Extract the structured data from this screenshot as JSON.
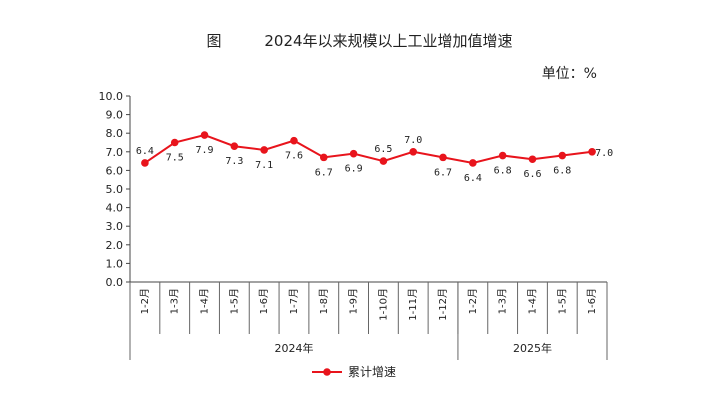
{
  "chart_data": {
    "type": "line",
    "title": "图         2024年以来规模以上工业增加值增速",
    "unit_label": "单位：%",
    "ylim": [
      0,
      10
    ],
    "yticks": [
      "10.0",
      "9.0",
      "8.0",
      "7.0",
      "6.0",
      "5.0",
      "4.0",
      "3.0",
      "2.0",
      "1.0",
      "0.0"
    ],
    "categories": [
      "1-2月",
      "1-3月",
      "1-4月",
      "1-5月",
      "1-6月",
      "1-7月",
      "1-8月",
      "1-9月",
      "1-10月",
      "1-11月",
      "1-12月",
      "1-2月",
      "1-3月",
      "1-4月",
      "1-5月",
      "1-6月"
    ],
    "groups": [
      {
        "label": "2024年",
        "count": 11
      },
      {
        "label": "2025年",
        "count": 5
      }
    ],
    "series": [
      {
        "name": "累计增速",
        "color": "#e8141c",
        "values": [
          6.4,
          7.5,
          7.9,
          7.3,
          7.1,
          7.6,
          6.7,
          6.9,
          6.5,
          7.0,
          6.7,
          6.4,
          6.8,
          6.6,
          6.8,
          7.0
        ],
        "labels": [
          "6.4",
          "7.5",
          "7.9",
          "7.3",
          "7.1",
          "7.6",
          "6.7",
          "6.9",
          "6.5",
          "7.0",
          "6.7",
          "6.4",
          "6.8",
          "6.6",
          "6.8",
          "7.0"
        ]
      }
    ],
    "grid": false,
    "legend": "bottom"
  }
}
